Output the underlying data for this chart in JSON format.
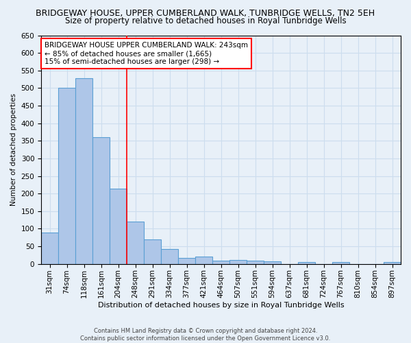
{
  "title": "BRIDGEWAY HOUSE, UPPER CUMBERLAND WALK, TUNBRIDGE WELLS, TN2 5EH",
  "subtitle": "Size of property relative to detached houses in Royal Tunbridge Wells",
  "xlabel": "Distribution of detached houses by size in Royal Tunbridge Wells",
  "ylabel": "Number of detached properties",
  "footer_line1": "Contains HM Land Registry data © Crown copyright and database right 2024.",
  "footer_line2": "Contains public sector information licensed under the Open Government Licence v3.0.",
  "categories": [
    "31sqm",
    "74sqm",
    "118sqm",
    "161sqm",
    "204sqm",
    "248sqm",
    "291sqm",
    "334sqm",
    "377sqm",
    "421sqm",
    "464sqm",
    "507sqm",
    "551sqm",
    "594sqm",
    "637sqm",
    "681sqm",
    "724sqm",
    "767sqm",
    "810sqm",
    "854sqm",
    "897sqm"
  ],
  "values": [
    90,
    500,
    528,
    360,
    213,
    120,
    70,
    42,
    17,
    20,
    10,
    12,
    10,
    7,
    0,
    5,
    0,
    5,
    0,
    0,
    5
  ],
  "bar_color": "#aec6e8",
  "bar_edge_color": "#5a9fd4",
  "annotation_box_text_line1": "BRIDGEWAY HOUSE UPPER CUMBERLAND WALK: 243sqm",
  "annotation_box_text_line2": "← 85% of detached houses are smaller (1,665)",
  "annotation_box_text_line3": "15% of semi-detached houses are larger (298) →",
  "annotation_box_color": "white",
  "annotation_box_edge_color": "red",
  "vline_x": 4.5,
  "vline_color": "red",
  "ylim": [
    0,
    650
  ],
  "yticks": [
    0,
    50,
    100,
    150,
    200,
    250,
    300,
    350,
    400,
    450,
    500,
    550,
    600,
    650
  ],
  "grid_color": "#ccddee",
  "bg_color": "#e8f0f8",
  "title_fontsize": 9,
  "subtitle_fontsize": 8.5
}
